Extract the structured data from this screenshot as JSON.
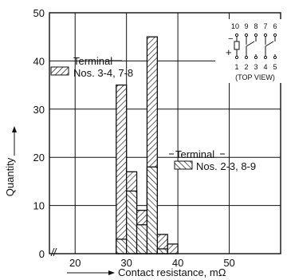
{
  "chart_data": {
    "type": "histogram",
    "xlabel": "Contact resistance, mΩ",
    "ylabel": "Quantity",
    "xlim": [
      15,
      60
    ],
    "ylim": [
      0,
      50
    ],
    "x_tick_labels": [
      "20",
      "30",
      "40",
      "50"
    ],
    "y_tick_labels": [
      "0",
      "10",
      "20",
      "30",
      "40",
      "50"
    ],
    "grid": true,
    "series": [
      {
        "name": "Terminal Nos. 3-4, 7-8",
        "pattern": "diagonal-right",
        "bins": [
          {
            "x0": 28,
            "x1": 30,
            "value": 35
          },
          {
            "x0": 30,
            "x1": 32,
            "value": 17
          },
          {
            "x0": 32,
            "x1": 34,
            "value": 9
          },
          {
            "x0": 34,
            "x1": 36,
            "value": 45
          },
          {
            "x0": 36,
            "x1": 38,
            "value": 4
          },
          {
            "x0": 38,
            "x1": 40,
            "value": 2
          }
        ]
      },
      {
        "name": "Terminal Nos. 2-3, 8-9",
        "pattern": "diagonal-left",
        "bins": [
          {
            "x0": 26,
            "x1": 28,
            "value": 0
          },
          {
            "x0": 28,
            "x1": 30,
            "value": 3
          },
          {
            "x0": 30,
            "x1": 32,
            "value": 13
          },
          {
            "x0": 32,
            "x1": 34,
            "value": 6
          },
          {
            "x0": 34,
            "x1": 36,
            "value": 18
          },
          {
            "x0": 36,
            "x1": 38,
            "value": 1
          }
        ]
      }
    ],
    "legend": [
      {
        "line1": "Terminal",
        "line2": "Nos. 3-4, 7-8"
      },
      {
        "line1": "Terminal",
        "line2": "Nos. 2-3, 8-9"
      }
    ],
    "inset": {
      "top_numbers": [
        "10",
        "9",
        "8",
        "7",
        "6"
      ],
      "bottom_numbers": [
        "1",
        "2",
        "3",
        "4",
        "5"
      ],
      "caption": "(TOP VIEW)",
      "minus_sign": "−",
      "plus_sign": "+"
    }
  }
}
